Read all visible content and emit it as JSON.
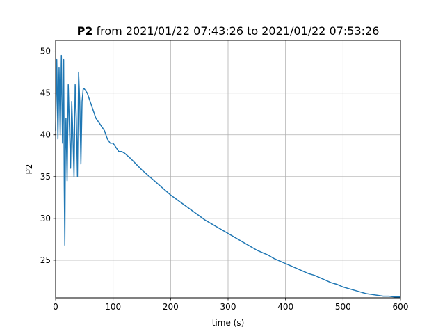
{
  "chart_data": {
    "type": "line",
    "title_var": "P2",
    "title_rest": " from 2021/01/22 07:43:26 to 2021/01/22 07:53:26",
    "xlabel": "time (s)",
    "ylabel": "P2",
    "xlim": [
      0,
      600
    ],
    "ylim": [
      20.5,
      51.3
    ],
    "xticks": [
      0,
      100,
      200,
      300,
      400,
      500,
      600
    ],
    "yticks": [
      25,
      30,
      35,
      40,
      45,
      50
    ],
    "grid": true,
    "line_color": "#1f77b4",
    "series": [
      {
        "x": [
          0,
          2,
          4,
          6,
          8,
          10,
          12,
          14,
          15,
          16,
          17,
          18,
          20,
          22,
          24,
          26,
          28,
          30,
          32,
          34,
          36,
          38,
          40,
          42,
          44,
          46,
          48,
          50,
          55,
          60,
          65,
          70,
          75,
          80,
          85,
          90,
          95,
          100,
          105,
          110,
          115,
          120,
          130,
          140,
          150,
          160,
          170,
          180,
          190,
          200,
          210,
          220,
          230,
          240,
          250,
          260,
          270,
          280,
          290,
          300,
          310,
          320,
          330,
          340,
          350,
          360,
          370,
          380,
          390,
          400,
          410,
          420,
          430,
          440,
          450,
          460,
          470,
          480,
          490,
          500,
          510,
          520,
          530,
          540,
          550,
          560,
          570,
          580,
          590,
          600
        ],
        "y": [
          40.5,
          49.0,
          39.5,
          48.0,
          40.0,
          49.5,
          39.0,
          49.0,
          34.0,
          26.8,
          38.0,
          42.0,
          34.5,
          46.0,
          41.0,
          36.0,
          44.0,
          40.0,
          35.0,
          46.0,
          42.0,
          35.0,
          47.5,
          44.0,
          36.5,
          44.0,
          45.5,
          45.5,
          45.0,
          44.0,
          43.0,
          42.0,
          41.5,
          41.0,
          40.5,
          39.5,
          39.0,
          39.0,
          38.5,
          38.0,
          38.0,
          37.8,
          37.2,
          36.5,
          35.8,
          35.2,
          34.6,
          34.0,
          33.4,
          32.8,
          32.3,
          31.8,
          31.3,
          30.8,
          30.3,
          29.8,
          29.4,
          29.0,
          28.6,
          28.2,
          27.8,
          27.4,
          27.0,
          26.6,
          26.2,
          25.9,
          25.6,
          25.2,
          24.9,
          24.6,
          24.3,
          24.0,
          23.7,
          23.4,
          23.2,
          22.9,
          22.6,
          22.3,
          22.1,
          21.8,
          21.6,
          21.4,
          21.2,
          21.0,
          20.9,
          20.8,
          20.7,
          20.7,
          20.6,
          20.6
        ]
      }
    ]
  }
}
